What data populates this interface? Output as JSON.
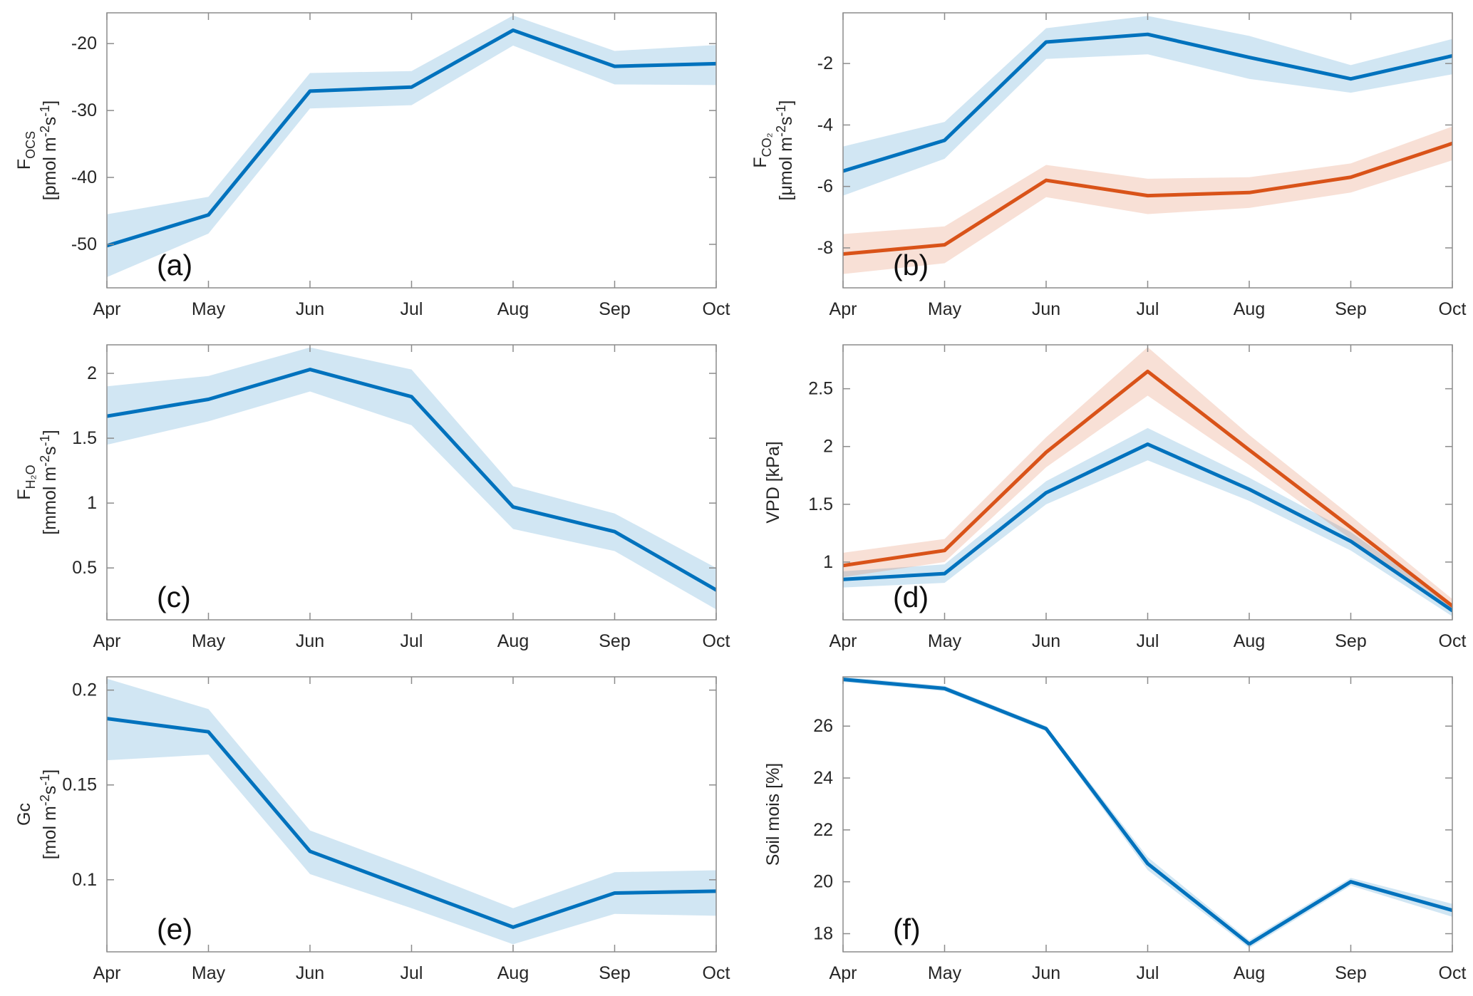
{
  "figure": {
    "background": "#ffffff",
    "axis_box_color": "#8c8c8c",
    "tick_text_color": "#262626",
    "label_text_color": "#262626",
    "panel_letter_color": "#0f0f0f",
    "band_opacity": 0.18,
    "line_width": 5,
    "colors": {
      "blue": "#0072bd",
      "orange": "#d95319"
    }
  },
  "chart_data": [
    {
      "id": "a",
      "type": "line",
      "panel_label": "(a)",
      "categories": [
        "Apr",
        "May",
        "Jun",
        "Jul",
        "Aug",
        "Sep",
        "Oct"
      ],
      "xlabel": "",
      "ylabel_lines": [
        "F_{OCS}",
        "[pmol m^{-2}s^{-1}]"
      ],
      "ylim": [
        -56.5,
        -15.4
      ],
      "yticks": [
        -50,
        -40,
        -30,
        -20
      ],
      "ytick_labels": [
        "-50",
        "-40",
        "-30",
        "-20"
      ],
      "series": [
        {
          "name": "blue",
          "color": "blue",
          "values": [
            -50.2,
            -45.6,
            -27.1,
            -26.5,
            -18.0,
            -23.4,
            -23.0
          ],
          "band_upper": [
            -45.5,
            -42.9,
            -24.4,
            -24.1,
            -15.8,
            -21.1,
            -20.2
          ],
          "band_lower": [
            -54.9,
            -48.4,
            -29.7,
            -29.2,
            -20.3,
            -26.1,
            -26.2
          ]
        }
      ]
    },
    {
      "id": "b",
      "type": "line",
      "panel_label": "(b)",
      "categories": [
        "Apr",
        "May",
        "Jun",
        "Jul",
        "Aug",
        "Sep",
        "Oct"
      ],
      "xlabel": "",
      "ylabel_lines": [
        "F_{CO₂}",
        "[μmol m^{-2}s^{-1}]"
      ],
      "ylim": [
        -9.3,
        -0.35
      ],
      "yticks": [
        -8,
        -6,
        -4,
        -2
      ],
      "ytick_labels": [
        "-8",
        "-6",
        "-4",
        "-2"
      ],
      "series": [
        {
          "name": "blue",
          "color": "blue",
          "values": [
            -5.5,
            -4.5,
            -1.3,
            -1.05,
            -1.8,
            -2.5,
            -1.75
          ],
          "band_upper": [
            -4.7,
            -3.9,
            -0.85,
            -0.45,
            -1.1,
            -2.05,
            -1.2
          ],
          "band_lower": [
            -6.3,
            -5.1,
            -1.85,
            -1.7,
            -2.5,
            -2.95,
            -2.35
          ]
        },
        {
          "name": "orange",
          "color": "orange",
          "values": [
            -8.2,
            -7.9,
            -5.8,
            -6.3,
            -6.2,
            -5.7,
            -4.6
          ],
          "band_upper": [
            -7.55,
            -7.3,
            -5.3,
            -5.75,
            -5.7,
            -5.25,
            -4.05
          ],
          "band_lower": [
            -8.85,
            -8.5,
            -6.35,
            -6.9,
            -6.7,
            -6.2,
            -5.15
          ]
        }
      ]
    },
    {
      "id": "c",
      "type": "line",
      "panel_label": "(c)",
      "categories": [
        "Apr",
        "May",
        "Jun",
        "Jul",
        "Aug",
        "Sep",
        "Oct"
      ],
      "xlabel": "",
      "ylabel_lines": [
        "F_{H₂O}",
        "[mmol m^{-2}s^{-1}]"
      ],
      "ylim": [
        0.1,
        2.22
      ],
      "yticks": [
        0.5,
        1,
        1.5,
        2
      ],
      "ytick_labels": [
        "0.5",
        "1",
        "1.5",
        "2"
      ],
      "series": [
        {
          "name": "blue",
          "color": "blue",
          "values": [
            1.67,
            1.8,
            2.03,
            1.82,
            0.97,
            0.78,
            0.33
          ],
          "band_upper": [
            1.9,
            1.98,
            2.2,
            2.03,
            1.13,
            0.92,
            0.5
          ],
          "band_lower": [
            1.45,
            1.63,
            1.86,
            1.6,
            0.8,
            0.63,
            0.18
          ]
        }
      ]
    },
    {
      "id": "d",
      "type": "line",
      "panel_label": "(d)",
      "categories": [
        "Apr",
        "May",
        "Jun",
        "Jul",
        "Aug",
        "Sep",
        "Oct"
      ],
      "xlabel": "",
      "ylabel_lines": [
        "VPD [kPa]"
      ],
      "ylim": [
        0.5,
        2.88
      ],
      "yticks": [
        1,
        1.5,
        2,
        2.5
      ],
      "ytick_labels": [
        "1",
        "1.5",
        "2",
        "2.5"
      ],
      "series": [
        {
          "name": "blue",
          "color": "blue",
          "values": [
            0.85,
            0.9,
            1.6,
            2.02,
            1.63,
            1.18,
            0.58
          ],
          "band_upper": [
            0.92,
            0.98,
            1.7,
            2.16,
            1.73,
            1.26,
            0.63
          ],
          "band_lower": [
            0.78,
            0.82,
            1.5,
            1.88,
            1.53,
            1.1,
            0.53
          ]
        },
        {
          "name": "orange",
          "color": "orange",
          "values": [
            0.97,
            1.1,
            1.95,
            2.65,
            1.97,
            1.3,
            0.62
          ],
          "band_upper": [
            1.08,
            1.2,
            2.08,
            2.86,
            2.1,
            1.4,
            0.68
          ],
          "band_lower": [
            0.87,
            1.0,
            1.82,
            2.44,
            1.84,
            1.2,
            0.56
          ]
        }
      ]
    },
    {
      "id": "e",
      "type": "line",
      "panel_label": "(e)",
      "categories": [
        "Apr",
        "May",
        "Jun",
        "Jul",
        "Aug",
        "Sep",
        "Oct"
      ],
      "xlabel": "",
      "ylabel_lines": [
        "Gc",
        "[mol m^{-2}s^{-1}]"
      ],
      "ylim": [
        0.062,
        0.207
      ],
      "yticks": [
        0.1,
        0.15,
        0.2
      ],
      "ytick_labels": [
        "0.1",
        "0.15",
        "0.2"
      ],
      "series": [
        {
          "name": "blue",
          "color": "blue",
          "values": [
            0.185,
            0.178,
            0.115,
            0.095,
            0.075,
            0.093,
            0.094
          ],
          "band_upper": [
            0.206,
            0.19,
            0.126,
            0.106,
            0.085,
            0.104,
            0.105
          ],
          "band_lower": [
            0.163,
            0.166,
            0.103,
            0.085,
            0.066,
            0.082,
            0.081
          ]
        }
      ]
    },
    {
      "id": "f",
      "type": "line",
      "panel_label": "(f)",
      "categories": [
        "Apr",
        "May",
        "Jun",
        "Jul",
        "Aug",
        "Sep",
        "Oct"
      ],
      "xlabel": "",
      "ylabel_lines": [
        "Soil mois [%]"
      ],
      "ylim": [
        17.3,
        27.9
      ],
      "yticks": [
        18,
        20,
        22,
        24,
        26
      ],
      "ytick_labels": [
        "18",
        "20",
        "22",
        "24",
        "26"
      ],
      "series": [
        {
          "name": "blue",
          "color": "blue",
          "values": [
            27.8,
            27.45,
            25.9,
            20.7,
            17.6,
            20.0,
            18.9
          ],
          "band_upper": [
            27.9,
            27.55,
            26.0,
            20.95,
            17.75,
            20.15,
            19.15
          ],
          "band_lower": [
            27.7,
            27.35,
            25.8,
            20.45,
            17.45,
            19.85,
            18.65
          ]
        }
      ]
    }
  ]
}
